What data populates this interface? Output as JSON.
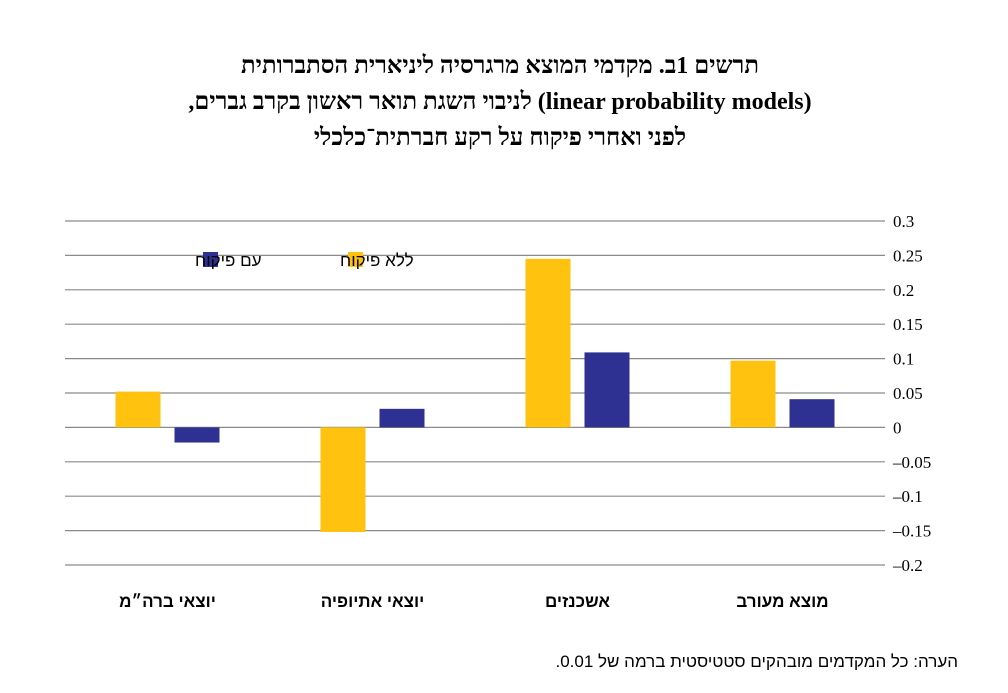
{
  "title": {
    "line1": "תרשים 1ב. מקדמי המוצא מרגרסיה ליניארית הסתברותית",
    "line2": "(linear probability models) לניבוי השגת תואר ראשון בקרב גברים,",
    "line3": "לפני ואחרי פיקוח על רקע חברתית־כלכלי"
  },
  "note": "הערה: כל המקדמים מובהקים סטטיסטית ברמה של 0.01.",
  "chart_data": {
    "type": "bar",
    "categories": [
      "מוצא מעורב",
      "אשכנזים",
      "יוצאי אתיופיה",
      "יוצאי ברה״מ"
    ],
    "series": [
      {
        "name": "ללא פיקוח",
        "color": "#FFC20E",
        "values": [
          0.097,
          0.245,
          -0.152,
          0.052
        ]
      },
      {
        "name": "עם פיקוח",
        "color": "#2E3192",
        "values": [
          0.041,
          0.109,
          0.027,
          -0.022
        ]
      }
    ],
    "ylim": [
      -0.2,
      0.3
    ],
    "yticks": [
      0.3,
      0.25,
      0.2,
      0.15,
      0.1,
      0.05,
      0,
      -0.05,
      -0.1,
      -0.15,
      -0.2
    ],
    "ytick_labels": [
      "0.3",
      "0.25",
      "0.2",
      "0.15",
      "0.1",
      "0.05",
      "0",
      "–0.05",
      "–0.1",
      "–0.15",
      "–0.2"
    ],
    "axis_side": "right",
    "grid": true,
    "legend": "top-left"
  }
}
